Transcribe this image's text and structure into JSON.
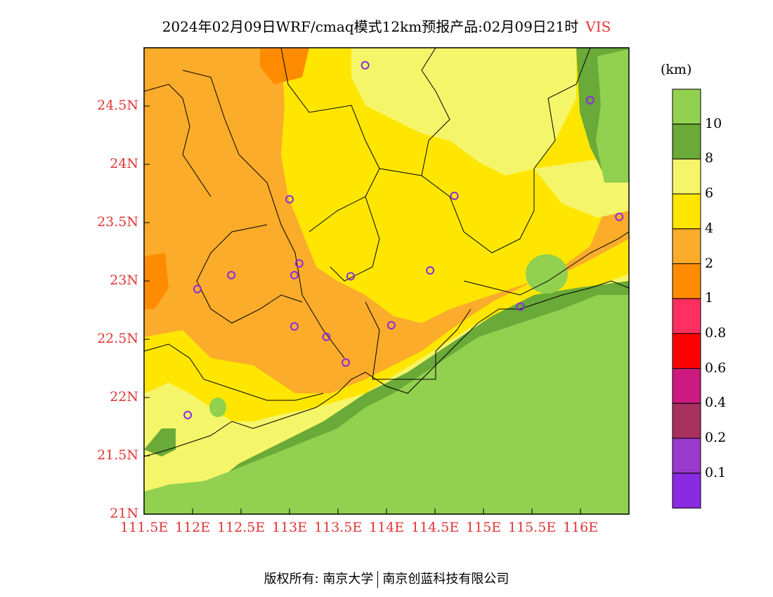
{
  "title": {
    "main": "2024年02月09日WRF/cmaq模式12km预报产品:02月09日21时",
    "variable": "VIS"
  },
  "axes": {
    "lat_labels": [
      "24.5N",
      "24N",
      "23.5N",
      "23N",
      "22.5N",
      "22N",
      "21.5N",
      "21N"
    ],
    "lon_labels": [
      "111.5E",
      "112E",
      "112.5E",
      "113E",
      "113.5E",
      "114E",
      "114.5E",
      "115E",
      "115.5E",
      "116E"
    ]
  },
  "colorbar": {
    "unit": "(km)",
    "labels": [
      "10",
      "8",
      "6",
      "4",
      "2",
      "1",
      "0.8",
      "0.6",
      "0.4",
      "0.2",
      "0.1"
    ],
    "colors": [
      "#92d050",
      "#6aaa38",
      "#f5f56a",
      "#ffe600",
      "#fbac2a",
      "#ff8c00",
      "#ff3060",
      "#ff0000",
      "#cc1a80",
      "#a8305e",
      "#9a3acc",
      "#8a2be2"
    ]
  },
  "copyright": {
    "left": "版权所有: 南京大学",
    "right": "南京创蓝科技有限公司"
  },
  "stations": [
    {
      "lon": 113.78,
      "lat": 24.85
    },
    {
      "lon": 116.1,
      "lat": 24.55
    },
    {
      "lon": 113.0,
      "lat": 23.7
    },
    {
      "lon": 114.7,
      "lat": 23.73
    },
    {
      "lon": 116.4,
      "lat": 23.55
    },
    {
      "lon": 113.1,
      "lat": 23.15
    },
    {
      "lon": 113.05,
      "lat": 23.05
    },
    {
      "lon": 112.4,
      "lat": 23.05
    },
    {
      "lon": 112.05,
      "lat": 22.93
    },
    {
      "lon": 113.63,
      "lat": 23.04
    },
    {
      "lon": 114.45,
      "lat": 23.09
    },
    {
      "lon": 115.38,
      "lat": 22.78
    },
    {
      "lon": 113.05,
      "lat": 22.61
    },
    {
      "lon": 114.05,
      "lat": 22.62
    },
    {
      "lon": 113.38,
      "lat": 22.52
    },
    {
      "lon": 113.58,
      "lat": 22.3
    },
    {
      "lon": 111.95,
      "lat": 21.85
    }
  ]
}
